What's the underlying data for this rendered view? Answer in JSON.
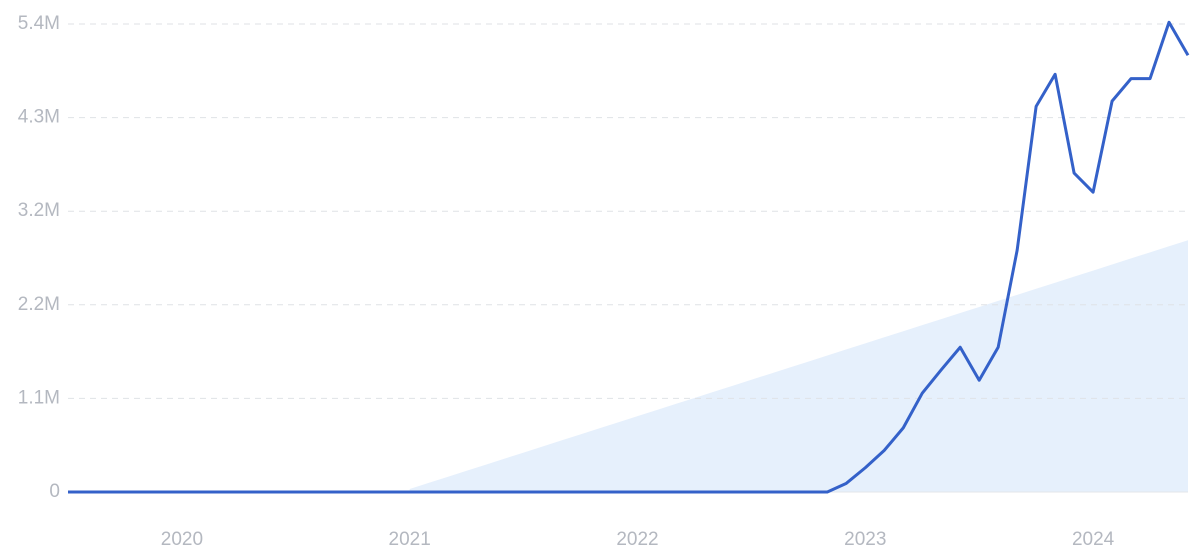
{
  "chart_data": {
    "type": "line",
    "categories": [
      null,
      null,
      null,
      null,
      null,
      null,
      "2020",
      null,
      null,
      null,
      null,
      null,
      null,
      null,
      null,
      null,
      null,
      null,
      "2021",
      null,
      null,
      null,
      null,
      null,
      null,
      null,
      null,
      null,
      null,
      null,
      "2022",
      null,
      null,
      null,
      null,
      null,
      null,
      null,
      null,
      null,
      null,
      null,
      "2023",
      null,
      null,
      null,
      null,
      null,
      null,
      null,
      null,
      null,
      null,
      null,
      "2024",
      null,
      null,
      null,
      null,
      null
    ],
    "series": [
      {
        "color": "#3461c9",
        "values": [
          0,
          0,
          0,
          0,
          0,
          0,
          0,
          0,
          0,
          0,
          0,
          0,
          0,
          0,
          0,
          0,
          0,
          0,
          0,
          0,
          0,
          0,
          0,
          0,
          0,
          0,
          0,
          0,
          0,
          0,
          0,
          0,
          0,
          0,
          0,
          0,
          0,
          0,
          0,
          0,
          0,
          100000,
          280000,
          480000,
          740000,
          1140000,
          1410000,
          1670000,
          1290000,
          1670000,
          2790000,
          4450000,
          4820000,
          3680000,
          3460000,
          4510000,
          4770000,
          4770000,
          5420000,
          5040000
        ]
      }
    ],
    "trend": {
      "color": "#e6f0fc",
      "values": [
        null,
        null,
        null,
        null,
        null,
        null,
        null,
        null,
        null,
        null,
        null,
        null,
        null,
        null,
        null,
        null,
        null,
        null,
        35000,
        105000,
        175000,
        245000,
        315000,
        385000,
        455000,
        525000,
        595000,
        665000,
        735000,
        805000,
        875000,
        945000,
        1015000,
        1085000,
        1155000,
        1225000,
        1295000,
        1365000,
        1435000,
        1505000,
        1575000,
        1645000,
        1715000,
        1785000,
        1855000,
        1925000,
        1995000,
        2065000,
        2135000,
        2205000,
        2275000,
        2345000,
        2415000,
        2485000,
        2555000,
        2625000,
        2695000,
        2765000,
        2835000,
        2905000
      ]
    },
    "ylim": [
      0,
      5400000
    ],
    "yticks": [
      0,
      {
        "value": 1080000,
        "label": "1.1M"
      },
      {
        "value": 2160000,
        "label": "2.2M"
      },
      {
        "value": 3240000,
        "label": "3.2M"
      },
      {
        "value": 4320000,
        "label": "4.3M"
      },
      {
        "value": 5400000,
        "label": "5.4M"
      }
    ],
    "grid": true
  }
}
